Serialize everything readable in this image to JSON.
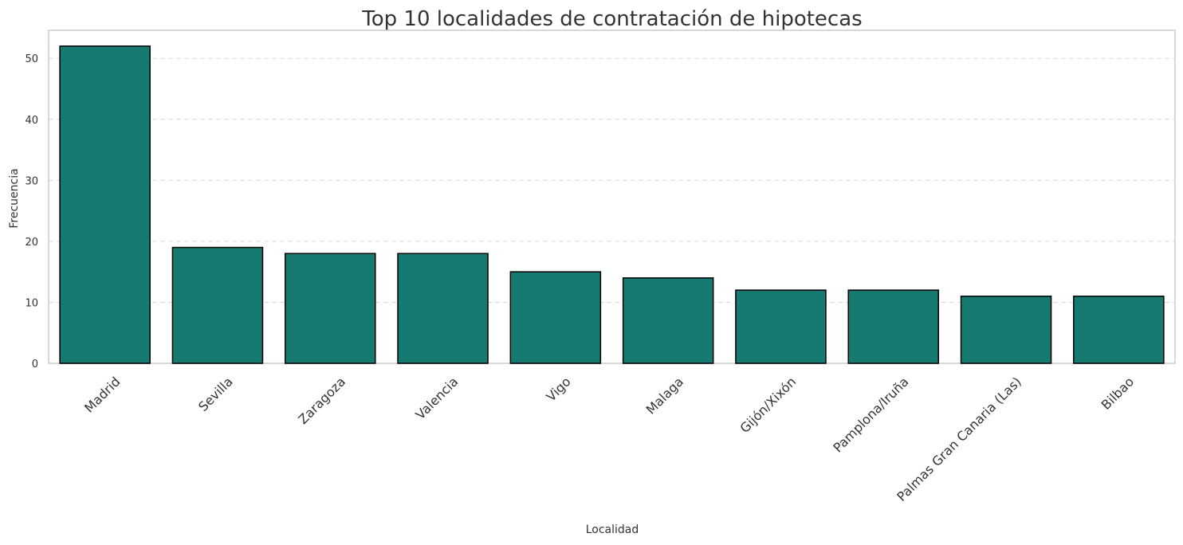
{
  "chart_data": {
    "type": "bar",
    "title": "Top 10 localidades de contratación de hipotecas",
    "xlabel": "Localidad",
    "ylabel": "Frecuencia",
    "categories": [
      "Madrid",
      "Sevilla",
      "Zaragoza",
      "Valencia",
      "Vigo",
      "Malaga",
      "Gijón/Xixón",
      "Pamplona/Iruña",
      "Palmas Gran Canaria (Las)",
      "Bilbao"
    ],
    "values": [
      52,
      19,
      18,
      18,
      15,
      14,
      12,
      12,
      11,
      11
    ],
    "ylim": [
      0,
      54.6
    ],
    "yticks": [
      0,
      10,
      20,
      30,
      40,
      50
    ],
    "grid": "y-dashed",
    "colors": {
      "bar_fill": "#167A70",
      "bar_stroke": "#000000",
      "grid": "#D9D9D9",
      "frame": "#CCCCCC"
    }
  }
}
